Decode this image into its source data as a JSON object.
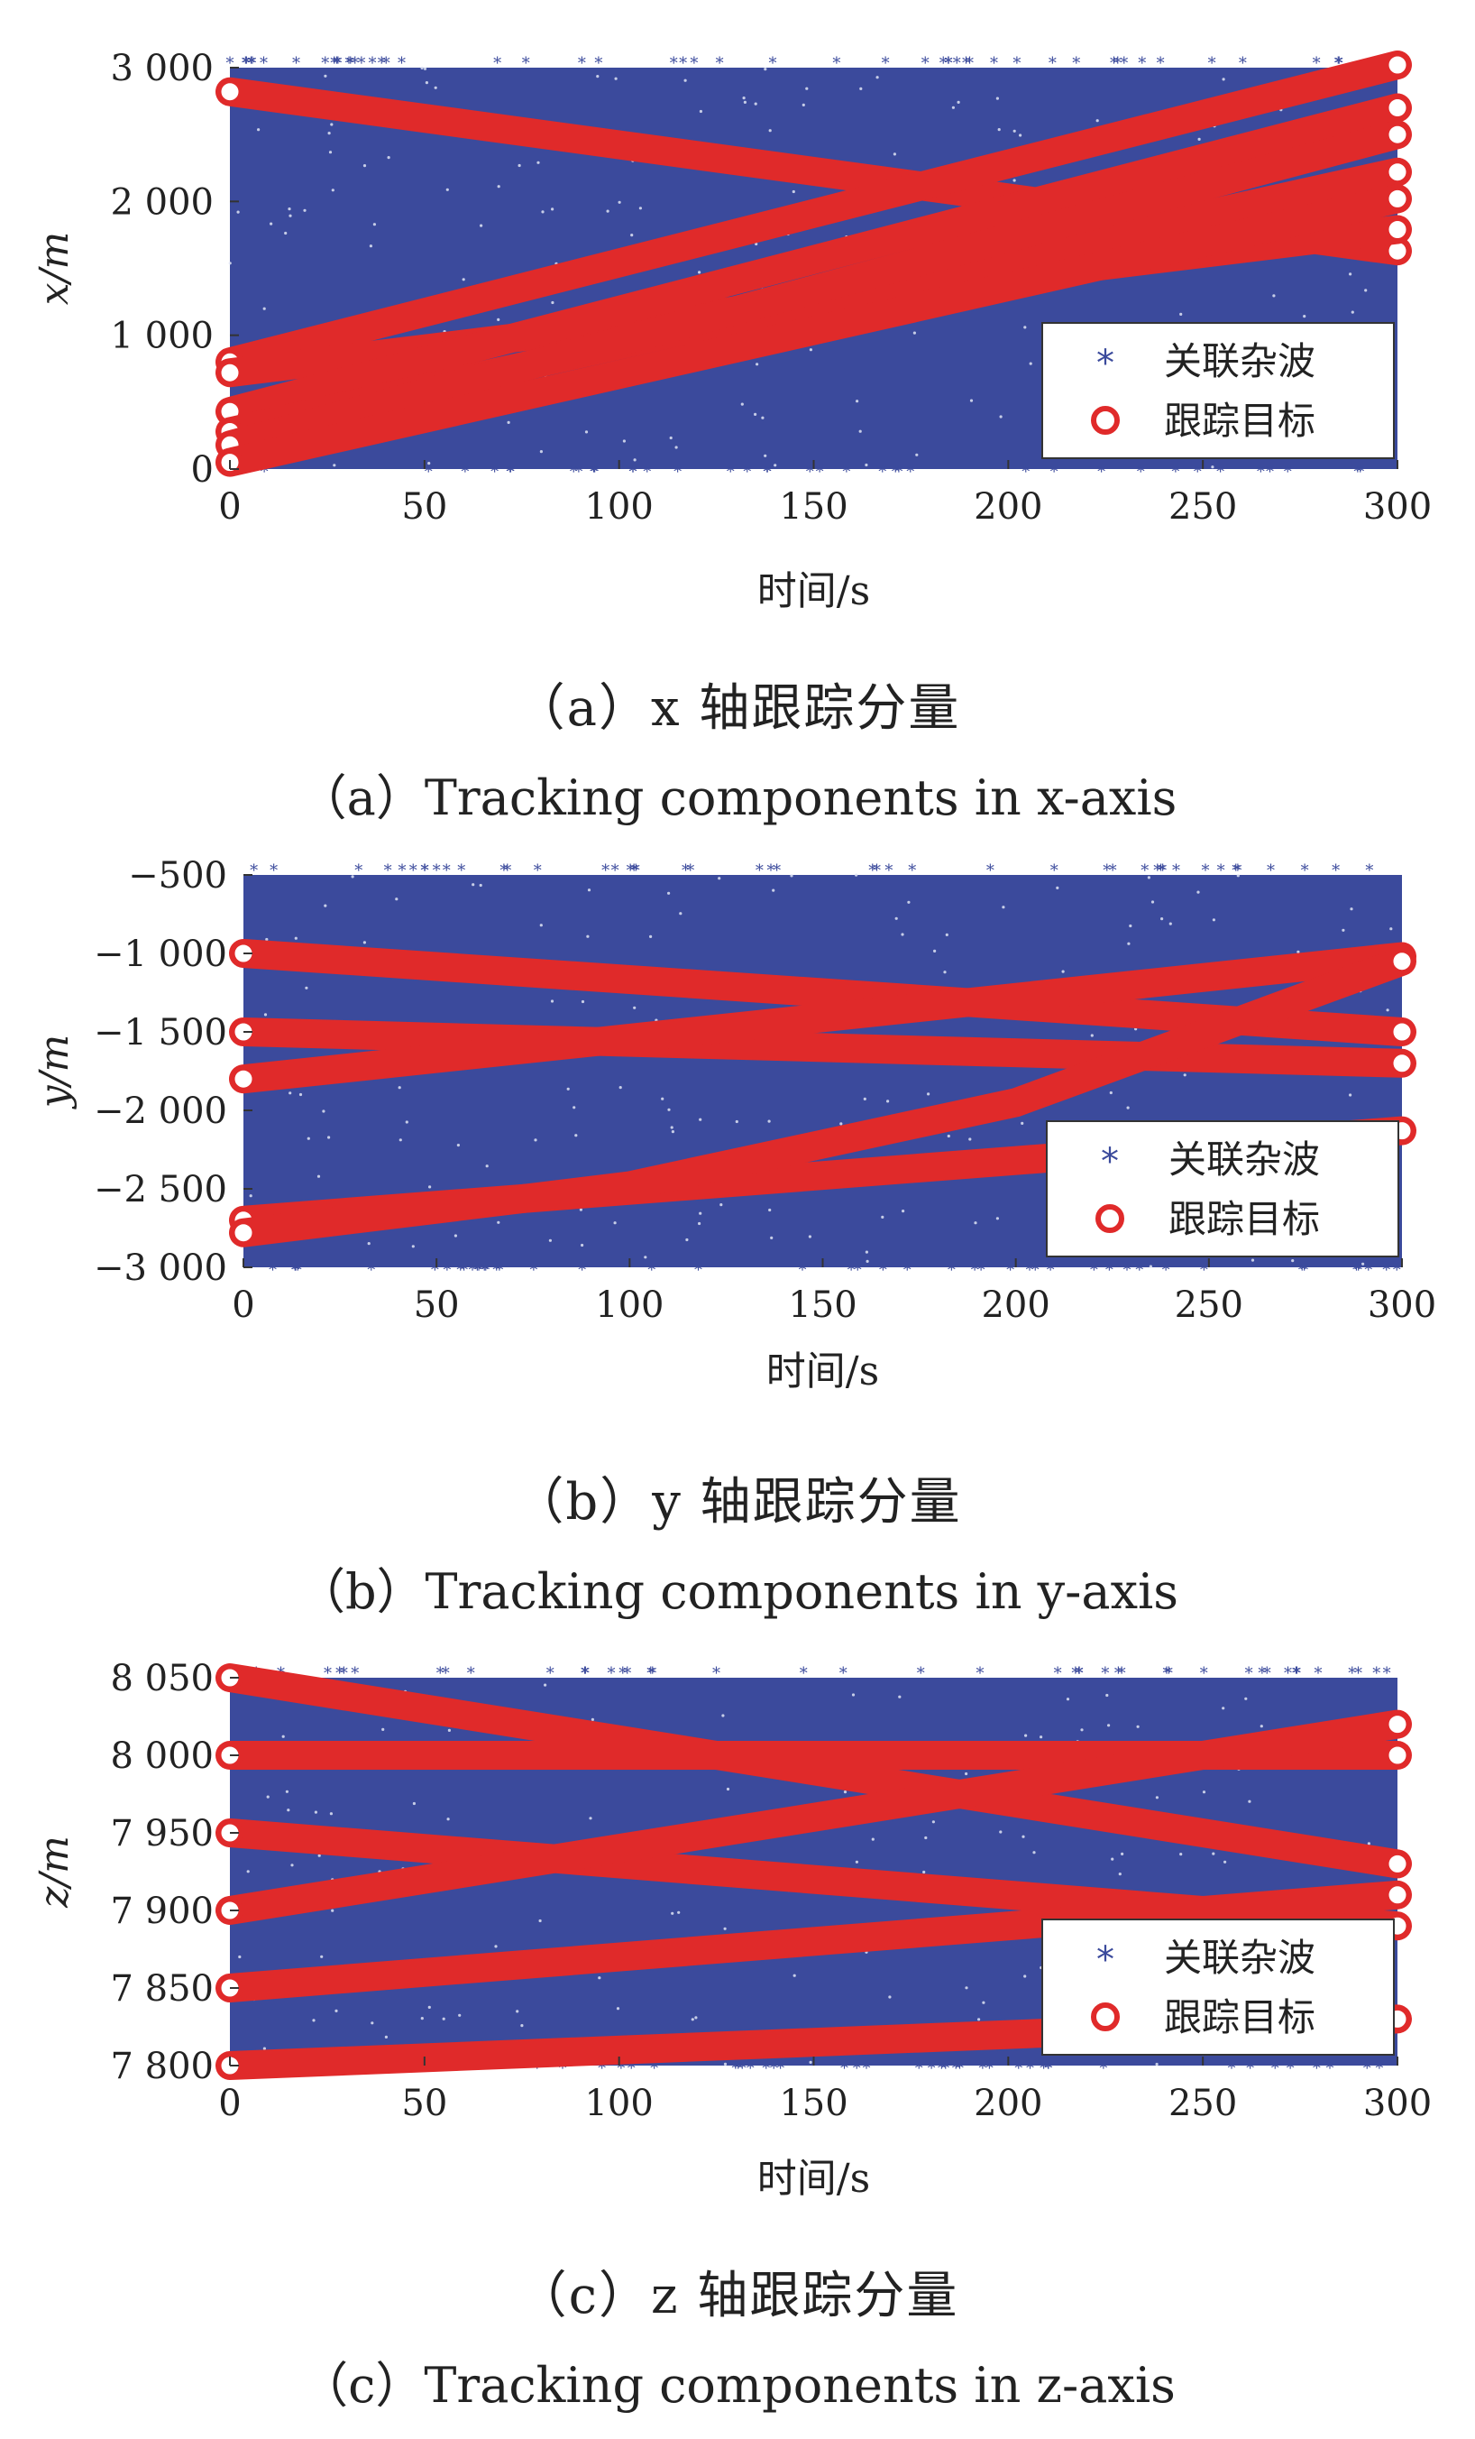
{
  "chart_data": [
    {
      "type": "scatter",
      "id": "a",
      "xlabel": "时间/s",
      "ylabel": "x/m",
      "xlim": [
        0,
        300
      ],
      "ylim": [
        0,
        3000
      ],
      "xticks": [
        0,
        50,
        100,
        150,
        200,
        250,
        300
      ],
      "xtick_labels": [
        "0",
        "50",
        "100",
        "150",
        "200",
        "250",
        "300"
      ],
      "yticks": [
        0,
        1000,
        2000,
        3000
      ],
      "ytick_labels": [
        "0",
        "1 000",
        "2 000",
        "3 000"
      ],
      "legend": {
        "position": "bottom-right",
        "entries": [
          "关联杂波",
          "跟踪目标"
        ]
      },
      "series": [
        {
          "name": "关联杂波",
          "marker": "*",
          "color": "#3b4a9c",
          "description_range": {
            "x": [
              0,
              300
            ],
            "y": [
              0,
              3000
            ]
          }
        },
        {
          "name": "跟踪目标",
          "marker": "o",
          "color": "#e02a2a",
          "tracks": [
            {
              "x": [
                0,
                300
              ],
              "y": [
                2820,
                1630
              ]
            },
            {
              "x": [
                0,
                300
              ],
              "y": [
                800,
                3020
              ]
            },
            {
              "x": [
                0,
                300
              ],
              "y": [
                720,
                1790
              ]
            },
            {
              "x": [
                0,
                300
              ],
              "y": [
                430,
                2700
              ]
            },
            {
              "x": [
                0,
                300
              ],
              "y": [
                280,
                2220
              ]
            },
            {
              "x": [
                0,
                300
              ],
              "y": [
                180,
                2500
              ]
            },
            {
              "x": [
                0,
                300
              ],
              "y": [
                50,
                2020
              ]
            }
          ]
        }
      ],
      "caption_cn": "（a）x 轴跟踪分量",
      "caption_en": "（a）Tracking components in x-axis"
    },
    {
      "type": "scatter",
      "id": "b",
      "xlabel": "时间/s",
      "ylabel": "y/m",
      "xlim": [
        0,
        300
      ],
      "ylim": [
        -3000,
        -500
      ],
      "xticks": [
        0,
        50,
        100,
        150,
        200,
        250,
        300
      ],
      "xtick_labels": [
        "0",
        "50",
        "100",
        "150",
        "200",
        "250",
        "300"
      ],
      "yticks": [
        -500,
        -1000,
        -1500,
        -2000,
        -2500,
        -3000
      ],
      "ytick_labels": [
        "−500",
        "−1 000",
        "−1 500",
        "−2 000",
        "−2 500",
        "−3 000"
      ],
      "legend": {
        "position": "bottom-right",
        "entries": [
          "关联杂波",
          "跟踪目标"
        ]
      },
      "series": [
        {
          "name": "关联杂波",
          "marker": "*",
          "color": "#3b4a9c",
          "description_range": {
            "x": [
              0,
              300
            ],
            "y": [
              -3000,
              -500
            ]
          }
        },
        {
          "name": "跟踪目标",
          "marker": "o",
          "color": "#e02a2a",
          "tracks": [
            {
              "x": [
                0,
                300
              ],
              "y": [
                -1000,
                -1500
              ]
            },
            {
              "x": [
                0,
                300
              ],
              "y": [
                -1500,
                -1700
              ]
            },
            {
              "x": [
                0,
                300
              ],
              "y": [
                -1800,
                -1020
              ]
            },
            {
              "x": [
                0,
                300
              ],
              "y": [
                -2700,
                -2130
              ]
            },
            {
              "x": [
                0,
                100,
                200,
                300
              ],
              "y": [
                -2780,
                -2480,
                -1950,
                -1050
              ]
            }
          ]
        }
      ],
      "caption_cn": "（b）y 轴跟踪分量",
      "caption_en": "（b）Tracking components in y-axis"
    },
    {
      "type": "scatter",
      "id": "c",
      "xlabel": "时间/s",
      "ylabel": "z/m",
      "xlim": [
        0,
        300
      ],
      "ylim": [
        7800,
        8050
      ],
      "xticks": [
        0,
        50,
        100,
        150,
        200,
        250,
        300
      ],
      "xtick_labels": [
        "0",
        "50",
        "100",
        "150",
        "200",
        "250",
        "300"
      ],
      "yticks": [
        7800,
        7850,
        7900,
        7950,
        8000,
        8050
      ],
      "ytick_labels": [
        "7 800",
        "7 850",
        "7 900",
        "7 950",
        "8 000",
        "8 050"
      ],
      "legend": {
        "position": "bottom-right",
        "entries": [
          "关联杂波",
          "跟踪目标"
        ]
      },
      "series": [
        {
          "name": "关联杂波",
          "marker": "*",
          "color": "#3b4a9c",
          "description_range": {
            "x": [
              0,
              300
            ],
            "y": [
              7800,
              8050
            ]
          }
        },
        {
          "name": "跟踪目标",
          "marker": "o",
          "color": "#e02a2a",
          "tracks": [
            {
              "x": [
                0,
                300
              ],
              "y": [
                8050,
                7930
              ]
            },
            {
              "x": [
                0,
                300
              ],
              "y": [
                8000,
                8000
              ]
            },
            {
              "x": [
                0,
                300
              ],
              "y": [
                7950,
                7890
              ]
            },
            {
              "x": [
                0,
                300
              ],
              "y": [
                7900,
                8020
              ]
            },
            {
              "x": [
                0,
                300
              ],
              "y": [
                7850,
                7910
              ]
            },
            {
              "x": [
                0,
                300
              ],
              "y": [
                7800,
                7830
              ]
            }
          ]
        }
      ],
      "caption_cn": "（c）z 轴跟踪分量",
      "caption_en": "（c）Tracking components in z-axis"
    }
  ]
}
